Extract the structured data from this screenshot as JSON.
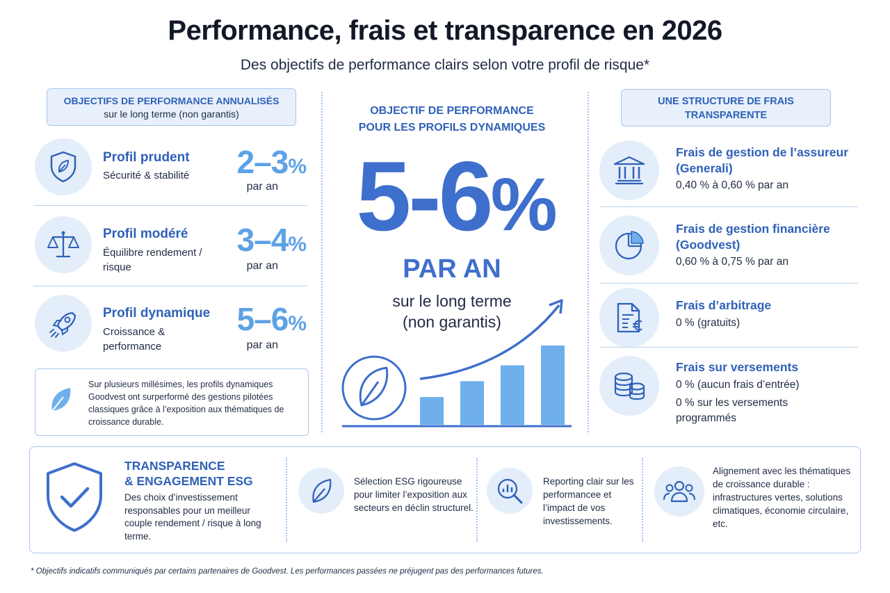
{
  "header": {
    "title": "Performance, frais et transparence en 2026",
    "subtitle": "Des objectifs de performance clairs selon votre profil de risque*"
  },
  "left": {
    "pill_title": "OBJECTIFS DE PERFORMANCE ANNUALISÉS",
    "pill_sub": "sur le long terme (non garantis)",
    "profiles": [
      {
        "name": "Profil prudent",
        "desc": "Sécurité & stabilité",
        "value": "2–3",
        "pct": "%",
        "unit": "par an",
        "icon": "shield-leaf-icon"
      },
      {
        "name": "Profil modéré",
        "desc": "Équilibre rendement / risque",
        "value": "3–4",
        "pct": "%",
        "unit": "par an",
        "icon": "scale-icon"
      },
      {
        "name": "Profil dynamique",
        "desc": "Croissance & performance",
        "value": "5–6",
        "pct": "%",
        "unit": "par an",
        "icon": "rocket-icon"
      }
    ],
    "note": "Sur plusieurs millésimes, les profils dynamiques Goodvest ont surperformé des gestions pilotées classiques grâce à l’exposition aux thématiques de croissance durable."
  },
  "center": {
    "heading_line1": "OBJECTIF DE PERFORMANCE",
    "heading_line2": "POUR LES PROFILS DYNAMIQUES",
    "big_value": "5-6",
    "big_pct": "%",
    "per_year": "PAR AN",
    "long_term_line1": "sur le long terme",
    "long_term_line2": "(non garantis)",
    "growth_bars": [
      0.28,
      0.44,
      0.6,
      0.8
    ]
  },
  "right": {
    "pill_title_line1": "UNE STRUCTURE DE FRAIS",
    "pill_title_line2": "TRANSPARENTE",
    "fees": [
      {
        "name": "Frais de gestion de l’assureur (Generali)",
        "desc": "0,40 % à 0,60 % par an",
        "icon": "bank-icon"
      },
      {
        "name": "Frais de gestion financière (Goodvest)",
        "desc": "0,60 % à 0,75 % par an",
        "icon": "pie-chart-icon"
      },
      {
        "name": "Frais d’arbitrage",
        "desc": "0 % (gratuits)",
        "icon": "document-euro-icon"
      },
      {
        "name": "Frais sur versements",
        "desc": "0 % (aucun frais d’entrée)",
        "desc2": "0 % sur les versements programmés",
        "icon": "coins-icon"
      }
    ]
  },
  "esg": {
    "title_line1": "TRANSPARENCE",
    "title_line2": "& ENGAGEMENT ESG",
    "desc": "Des choix d’investissement responsables pour un meilleur couple rendement / risque à long terme.",
    "items": [
      {
        "text": "Sélection ESG rigoureuse pour limiter l’exposition aux secteurs en déclin structurel.",
        "icon": "leaf-icon"
      },
      {
        "text": "Reporting clair sur les performancee et l’impact de vos investissements.",
        "icon": "report-search-icon"
      },
      {
        "text": "Alignement avec les thématiques de croissance durable : infrastructures vertes, solutions climatiques, économie circulaire, etc.",
        "icon": "people-icon"
      }
    ]
  },
  "footnote": "* Objectifs indicatifs communiqués par certains partenaires de Goodvest. Les performances passées ne préjugent pas des performances futures.",
  "colors": {
    "accent": "#2f61b8",
    "accent_light": "#5ea2e6",
    "big_blue": "#3e6fcc",
    "pale": "#e3eefa"
  }
}
